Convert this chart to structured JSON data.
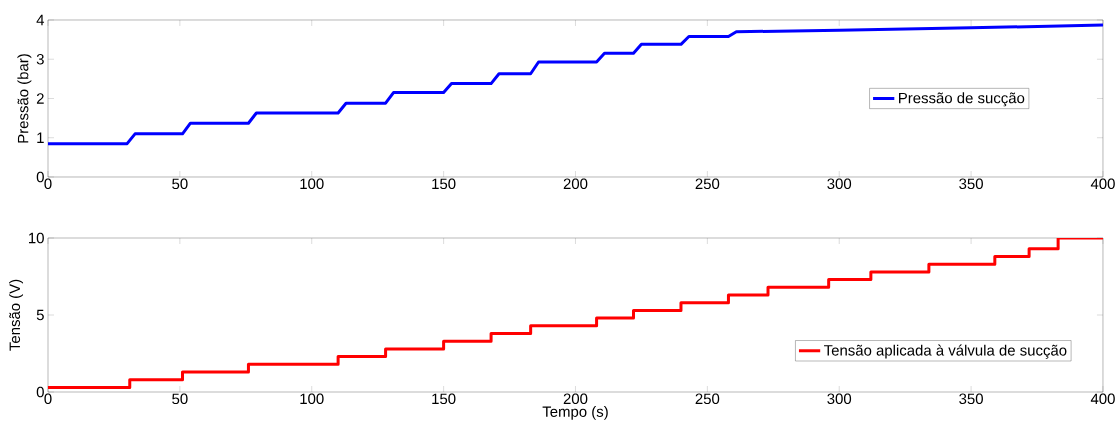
{
  "chart_data": [
    {
      "type": "line",
      "ylabel": "Pressão (bar)",
      "xlim": [
        0,
        400
      ],
      "ylim": [
        0,
        4
      ],
      "xticks": [
        0,
        50,
        100,
        150,
        200,
        250,
        300,
        350,
        400
      ],
      "yticks": [
        0,
        1,
        2,
        3,
        4
      ],
      "legend": "right",
      "series": [
        {
          "name": "Pressão de sucção",
          "color": "#0000ff",
          "x": [
            0,
            30,
            33,
            51,
            54,
            76,
            79,
            110,
            113,
            128,
            131,
            150,
            153,
            168,
            171,
            183,
            186,
            208,
            211,
            222,
            225,
            240,
            243,
            258,
            261,
            300,
            350,
            400
          ],
          "values": [
            0.85,
            0.85,
            1.1,
            1.1,
            1.37,
            1.37,
            1.63,
            1.63,
            1.88,
            1.88,
            2.15,
            2.15,
            2.38,
            2.38,
            2.63,
            2.63,
            2.93,
            2.93,
            3.15,
            3.15,
            3.38,
            3.38,
            3.58,
            3.58,
            3.7,
            3.74,
            3.8,
            3.87
          ]
        }
      ]
    },
    {
      "type": "step",
      "xlabel": "Tempo (s)",
      "ylabel": "Tensão (V)",
      "xlim": [
        0,
        400
      ],
      "ylim": [
        0,
        10
      ],
      "xticks": [
        0,
        50,
        100,
        150,
        200,
        250,
        300,
        350,
        400
      ],
      "yticks": [
        0,
        5,
        10
      ],
      "legend": "bottom right",
      "series": [
        {
          "name": "Tensão aplicada à válvula de sucção",
          "color": "#ff0000",
          "x": [
            0,
            31,
            51,
            76,
            110,
            128,
            150,
            168,
            183,
            208,
            222,
            240,
            258,
            273,
            296,
            312,
            334,
            359,
            372,
            383,
            400
          ],
          "values": [
            0.3,
            0.8,
            1.3,
            1.8,
            2.3,
            2.8,
            3.3,
            3.8,
            4.3,
            4.8,
            5.3,
            5.8,
            6.3,
            6.8,
            7.3,
            7.8,
            8.3,
            8.8,
            9.3,
            10,
            10
          ]
        }
      ]
    }
  ]
}
